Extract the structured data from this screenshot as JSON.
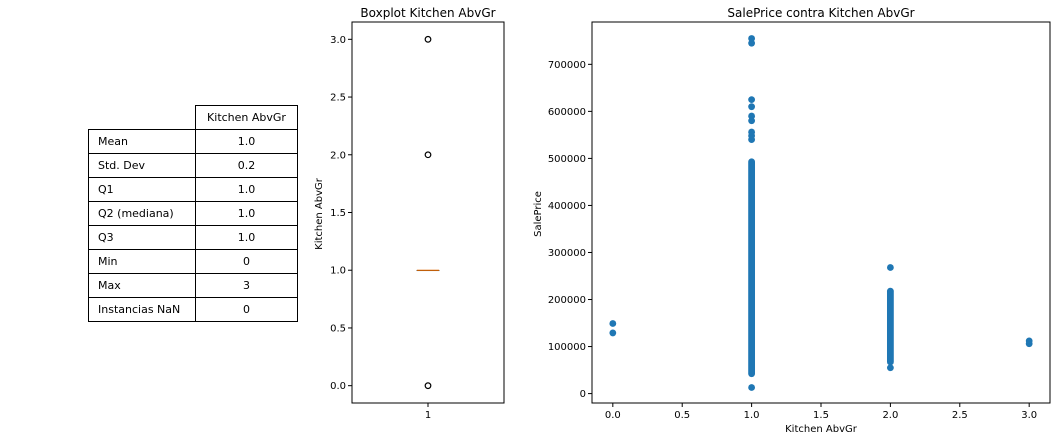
{
  "stats_table": {
    "column_header": "Kitchen AbvGr",
    "rows": [
      {
        "label": "Mean",
        "value": "1.0"
      },
      {
        "label": "Std. Dev",
        "value": "0.2"
      },
      {
        "label": "Q1",
        "value": "1.0"
      },
      {
        "label": "Q2 (mediana)",
        "value": "1.0"
      },
      {
        "label": "Q3",
        "value": "1.0"
      },
      {
        "label": "Min",
        "value": "0"
      },
      {
        "label": "Max",
        "value": "3"
      },
      {
        "label": "Instancias NaN",
        "value": "0"
      }
    ]
  },
  "chart_data": [
    {
      "type": "box",
      "title": "Boxplot Kitchen AbvGr",
      "xlabel": "",
      "ylabel": "Kitchen AbvGr",
      "categories": [
        "1"
      ],
      "ylim": [
        -0.15,
        3.15
      ],
      "yticks": [
        "0.0",
        "0.5",
        "1.0",
        "1.5",
        "2.0",
        "2.5",
        "3.0"
      ],
      "median": 1.0,
      "q1": 1.0,
      "q3": 1.0,
      "whisker_low": 1.0,
      "whisker_high": 1.0,
      "outliers": [
        0,
        2,
        3
      ],
      "median_color": "#ff7f0e"
    },
    {
      "type": "scatter",
      "title": "SalePrice contra Kitchen AbvGr",
      "xlabel": "Kitchen AbvGr",
      "ylabel": "SalePrice",
      "xlim": [
        -0.15,
        3.15
      ],
      "ylim": [
        -20000,
        790000
      ],
      "xticks": [
        "0.0",
        "0.5",
        "1.0",
        "1.5",
        "2.0",
        "2.5",
        "3.0"
      ],
      "yticks": [
        "0",
        "100000",
        "200000",
        "300000",
        "400000",
        "500000",
        "600000",
        "700000"
      ],
      "color": "#1f77b4",
      "columns": [
        {
          "x": 0,
          "points": [
            129000,
            149000
          ]
        },
        {
          "x": 1,
          "range": [
            35000,
            500000
          ],
          "points": [
            13000,
            540000,
            548000,
            556000,
            580000,
            590000,
            610000,
            625000,
            745000,
            755000
          ]
        },
        {
          "x": 2,
          "range": [
            60000,
            225000
          ],
          "points": [
            55000,
            268000
          ]
        },
        {
          "x": 3,
          "points": [
            106000,
            112000
          ]
        }
      ]
    }
  ]
}
